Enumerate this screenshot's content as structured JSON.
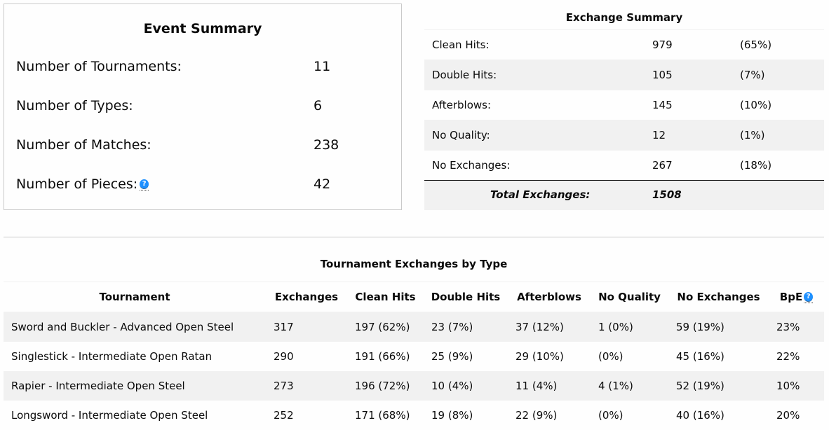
{
  "event_summary": {
    "title": "Event Summary",
    "rows": [
      {
        "label": "Number of Tournaments:",
        "value": "11"
      },
      {
        "label": "Number of Types:",
        "value": "6"
      },
      {
        "label": "Number of Matches:",
        "value": "238"
      },
      {
        "label": "Number of Pieces:",
        "value": "42"
      }
    ],
    "help_glyph": "?"
  },
  "exchange_summary": {
    "title": "Exchange Summary",
    "rows": [
      {
        "label": "Clean Hits:",
        "count": "979",
        "pct": "(65%)"
      },
      {
        "label": "Double Hits:",
        "count": "105",
        "pct": "(7%)"
      },
      {
        "label": "Afterblows:",
        "count": "145",
        "pct": "(10%)"
      },
      {
        "label": "No Quality:",
        "count": "12",
        "pct": "(1%)"
      },
      {
        "label": "No Exchanges:",
        "count": "267",
        "pct": "(18%)"
      }
    ],
    "total_label": "Total Exchanges:",
    "total_value": "1508"
  },
  "tournament_exchanges": {
    "title": "Tournament Exchanges by Type",
    "headers": [
      "Tournament",
      "Exchanges",
      "Clean Hits",
      "Double Hits",
      "Afterblows",
      "No Quality",
      "No Exchanges",
      "BpE"
    ],
    "rows": [
      [
        "Sword and Buckler - Advanced Open Steel",
        "317",
        "197 (62%)",
        "23 (7%)",
        "37 (12%)",
        "1 (0%)",
        "59 (19%)",
        "23%"
      ],
      [
        "Singlestick - Intermediate Open Ratan",
        "290",
        "191 (66%)",
        "25 (9%)",
        "29 (10%)",
        "(0%)",
        "45 (16%)",
        "22%"
      ],
      [
        "Rapier - Intermediate Open Steel",
        "273",
        "196 (72%)",
        "10 (4%)",
        "11 (4%)",
        "4 (1%)",
        "52 (19%)",
        "10%"
      ],
      [
        "Longsword - Intermediate Open Steel",
        "252",
        "171 (68%)",
        "19 (8%)",
        "22 (9%)",
        "(0%)",
        "40 (16%)",
        "20%"
      ]
    ]
  },
  "colors": {
    "help_icon": "#1e90ff",
    "row_alt": "#f1f1f1",
    "border": "#cacaca"
  }
}
